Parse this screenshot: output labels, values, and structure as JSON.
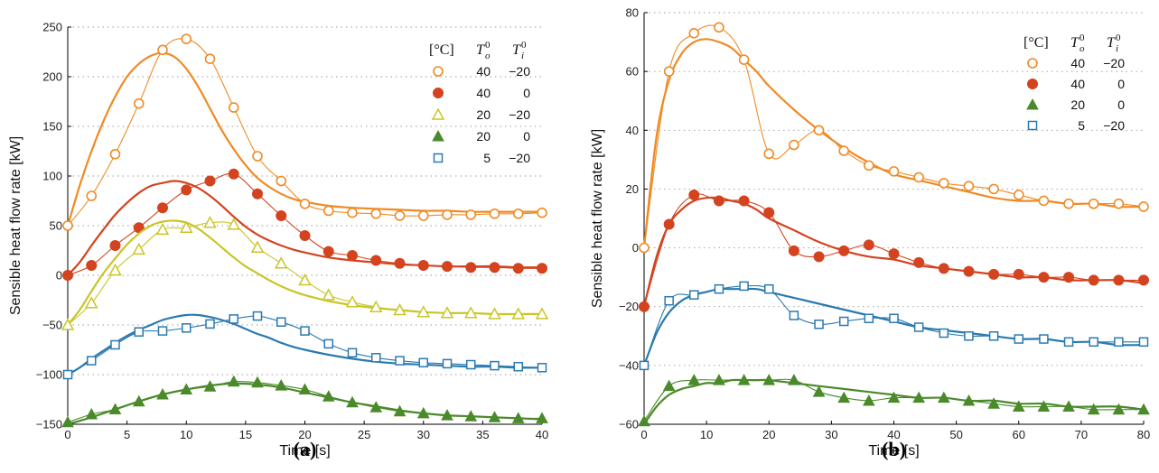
{
  "chart_data": [
    {
      "type": "line",
      "panel_label": "(a)",
      "xlabel": "Time [s]",
      "ylabel": "Sensible heat flow rate [kW]",
      "xlim": [
        0,
        40
      ],
      "ylim": [
        -150,
        250
      ],
      "xticks": [
        0,
        5,
        10,
        15,
        20,
        25,
        30,
        35,
        40
      ],
      "yticks": [
        -150,
        -100,
        -50,
        0,
        50,
        100,
        150,
        200,
        250
      ],
      "grid": "horizontal dotted",
      "legend_position": "top-right",
      "legend_header": {
        "unit": "[°C]",
        "col1_base": "T",
        "col1_sub": "o",
        "col1_sup": "0",
        "col2_base": "T",
        "col2_sub": "i",
        "col2_sup": "0"
      },
      "series": [
        {
          "To": "40",
          "Ti": "−20",
          "color": "#f08a24",
          "marker": "circle-open",
          "x": [
            0,
            2,
            4,
            6,
            8,
            10,
            12,
            14,
            16,
            18,
            20,
            22,
            24,
            26,
            28,
            30,
            32,
            34,
            36,
            38,
            40
          ],
          "values": [
            50,
            80,
            122,
            173,
            227,
            238,
            218,
            169,
            120,
            95,
            72,
            65,
            63,
            62,
            60,
            60,
            61,
            61,
            62,
            62,
            63
          ],
          "fit_x": [
            0,
            1,
            2,
            3,
            4,
            5,
            6,
            7,
            8,
            9,
            10,
            11,
            12,
            13,
            14,
            15,
            16,
            17,
            18,
            19,
            20,
            22,
            24,
            26,
            28,
            30,
            32,
            34,
            36,
            38,
            40
          ],
          "fit": [
            50,
            90,
            125,
            155,
            180,
            200,
            213,
            221,
            224,
            220,
            208,
            190,
            168,
            146,
            127,
            111,
            98,
            89,
            82,
            77,
            74,
            70,
            68,
            67,
            66,
            65,
            65,
            64,
            64,
            64,
            64
          ]
        },
        {
          "To": "40",
          "Ti": "0",
          "color": "#d4431f",
          "marker": "circle-filled",
          "x": [
            0,
            2,
            4,
            6,
            8,
            10,
            12,
            14,
            16,
            18,
            20,
            22,
            24,
            26,
            28,
            30,
            32,
            34,
            36,
            38,
            40
          ],
          "values": [
            0,
            10,
            30,
            48,
            68,
            86,
            95,
            102,
            82,
            60,
            40,
            24,
            20,
            15,
            12,
            10,
            9,
            8,
            8,
            7,
            7
          ],
          "fit_x": [
            0,
            1,
            2,
            3,
            4,
            5,
            6,
            7,
            8,
            9,
            10,
            11,
            12,
            13,
            14,
            15,
            16,
            17,
            18,
            19,
            20,
            22,
            24,
            26,
            28,
            30,
            32,
            34,
            36,
            38,
            40
          ],
          "fit": [
            0,
            13,
            30,
            46,
            61,
            73,
            83,
            90,
            93,
            95,
            93,
            88,
            80,
            70,
            59,
            49,
            41,
            35,
            30,
            26,
            23,
            18,
            15,
            13,
            11,
            10,
            9,
            9,
            9,
            8,
            8
          ]
        },
        {
          "To": "20",
          "Ti": "−20",
          "color": "#c9c527",
          "marker": "triangle-open",
          "x": [
            0,
            2,
            4,
            6,
            8,
            10,
            12,
            14,
            16,
            18,
            20,
            22,
            24,
            26,
            28,
            30,
            32,
            34,
            36,
            38,
            40
          ],
          "values": [
            -50,
            -28,
            5,
            26,
            46,
            48,
            53,
            51,
            28,
            12,
            -5,
            -20,
            -27,
            -32,
            -35,
            -37,
            -38,
            -38,
            -39,
            -39,
            -39
          ],
          "fit_x": [
            0,
            1,
            2,
            3,
            4,
            5,
            6,
            7,
            8,
            9,
            10,
            11,
            12,
            13,
            14,
            15,
            16,
            17,
            18,
            19,
            20,
            22,
            24,
            26,
            28,
            30,
            32,
            34,
            36,
            38,
            40
          ],
          "fit": [
            -50,
            -35,
            -16,
            2,
            17,
            31,
            42,
            50,
            54,
            55,
            53,
            47,
            38,
            28,
            18,
            9,
            2,
            -5,
            -11,
            -16,
            -20,
            -26,
            -30,
            -33,
            -35,
            -37,
            -38,
            -38,
            -39,
            -39,
            -39
          ]
        },
        {
          "To": "20",
          "Ti": "0",
          "color": "#4a8a2a",
          "marker": "triangle-filled",
          "x": [
            0,
            2,
            4,
            6,
            8,
            10,
            12,
            14,
            16,
            18,
            20,
            22,
            24,
            26,
            28,
            30,
            32,
            34,
            36,
            38,
            40
          ],
          "values": [
            -148,
            -140,
            -135,
            -127,
            -120,
            -115,
            -112,
            -107,
            -108,
            -111,
            -115,
            -122,
            -128,
            -133,
            -137,
            -139,
            -141,
            -142,
            -143,
            -144,
            -144
          ],
          "fit_x": [
            0,
            2,
            4,
            6,
            8,
            10,
            12,
            14,
            16,
            18,
            20,
            22,
            24,
            26,
            28,
            30,
            32,
            34,
            36,
            38,
            40
          ],
          "fit": [
            -150,
            -143,
            -135,
            -127,
            -120,
            -115,
            -111,
            -109,
            -110,
            -113,
            -118,
            -123,
            -128,
            -132,
            -136,
            -139,
            -141,
            -142,
            -143,
            -144,
            -145
          ]
        },
        {
          "To": "5",
          "Ti": "−20",
          "color": "#2a7ab0",
          "marker": "square-open",
          "x": [
            0,
            2,
            4,
            6,
            8,
            10,
            12,
            14,
            16,
            18,
            20,
            22,
            24,
            26,
            28,
            30,
            32,
            34,
            36,
            38,
            40
          ],
          "values": [
            -100,
            -86,
            -70,
            -57,
            -56,
            -53,
            -49,
            -44,
            -41,
            -47,
            -56,
            -69,
            -78,
            -83,
            -86,
            -88,
            -89,
            -90,
            -91,
            -92,
            -93
          ],
          "fit_x": [
            0,
            1,
            2,
            3,
            4,
            5,
            6,
            7,
            8,
            9,
            10,
            11,
            12,
            13,
            14,
            15,
            16,
            17,
            18,
            19,
            20,
            22,
            24,
            26,
            28,
            30,
            32,
            34,
            36,
            38,
            40
          ],
          "fit": [
            -100,
            -93,
            -84,
            -76,
            -68,
            -61,
            -55,
            -50,
            -45,
            -42,
            -40,
            -40,
            -42,
            -45,
            -49,
            -54,
            -59,
            -63,
            -68,
            -72,
            -75,
            -80,
            -84,
            -87,
            -89,
            -90,
            -91,
            -92,
            -92,
            -93,
            -93
          ]
        }
      ]
    },
    {
      "type": "line",
      "panel_label": "(b)",
      "xlabel": "Time [s]",
      "ylabel": "Sensible heat flow rate [kW]",
      "xlim": [
        0,
        80
      ],
      "ylim": [
        -60,
        80
      ],
      "xticks": [
        0,
        10,
        20,
        30,
        40,
        50,
        60,
        70,
        80
      ],
      "yticks": [
        -60,
        -40,
        -20,
        0,
        20,
        40,
        60,
        80
      ],
      "grid": "horizontal dotted",
      "legend_position": "top-right",
      "legend_header": {
        "unit": "[°C]",
        "col1_base": "T",
        "col1_sub": "o",
        "col1_sup": "0",
        "col2_base": "T",
        "col2_sub": "i",
        "col2_sup": "0"
      },
      "series": [
        {
          "To": "40",
          "Ti": "−20",
          "color": "#f08a24",
          "marker": "circle-open",
          "x": [
            0,
            4,
            8,
            12,
            16,
            20,
            24,
            28,
            32,
            36,
            40,
            44,
            48,
            52,
            56,
            60,
            64,
            68,
            72,
            76,
            80
          ],
          "values": [
            0,
            60,
            73,
            75,
            64,
            32,
            35,
            40,
            33,
            28,
            26,
            24,
            22,
            21,
            20,
            18,
            16,
            15,
            15,
            15,
            14
          ],
          "fit_x": [
            0,
            2,
            4,
            6,
            8,
            10,
            12,
            14,
            16,
            18,
            20,
            24,
            28,
            32,
            36,
            40,
            44,
            48,
            52,
            56,
            60,
            64,
            68,
            72,
            76,
            80
          ],
          "fit": [
            0,
            38,
            57,
            66,
            70,
            71,
            70,
            68,
            64,
            60,
            55,
            47,
            40,
            34,
            29,
            25,
            23,
            21,
            19,
            17,
            16,
            16,
            15,
            15,
            14,
            14
          ]
        },
        {
          "To": "40",
          "Ti": "0",
          "color": "#d4431f",
          "marker": "circle-filled",
          "x": [
            0,
            4,
            8,
            12,
            16,
            20,
            24,
            28,
            32,
            36,
            40,
            44,
            48,
            52,
            56,
            60,
            64,
            68,
            72,
            76,
            80
          ],
          "values": [
            -20,
            8,
            18,
            16,
            16,
            12,
            -1,
            -3,
            -1,
            1,
            -2,
            -5,
            -7,
            -8,
            -9,
            -9,
            -10,
            -10,
            -11,
            -11,
            -11
          ],
          "fit_x": [
            0,
            2,
            4,
            6,
            8,
            10,
            12,
            14,
            16,
            18,
            20,
            24,
            28,
            32,
            36,
            40,
            44,
            48,
            52,
            56,
            60,
            64,
            68,
            72,
            76,
            80
          ],
          "fit": [
            -20,
            -3,
            8,
            13,
            16,
            17,
            17,
            16,
            15,
            13,
            10,
            6,
            2,
            -1,
            -3,
            -4,
            -6,
            -7,
            -8,
            -9,
            -10,
            -10,
            -11,
            -11,
            -11,
            -12
          ]
        },
        {
          "To": "20",
          "Ti": "0",
          "color": "#4a8a2a",
          "marker": "triangle-filled",
          "x": [
            0,
            4,
            8,
            12,
            16,
            20,
            24,
            28,
            32,
            36,
            40,
            44,
            48,
            52,
            56,
            60,
            64,
            68,
            72,
            76,
            80
          ],
          "values": [
            -59,
            -47,
            -45,
            -45,
            -45,
            -45,
            -45,
            -49,
            -51,
            -52,
            -51,
            -51,
            -51,
            -52,
            -53,
            -54,
            -54,
            -54,
            -55,
            -55,
            -55
          ],
          "fit_x": [
            0,
            2,
            4,
            6,
            8,
            10,
            12,
            14,
            16,
            18,
            20,
            24,
            28,
            32,
            36,
            40,
            44,
            48,
            52,
            56,
            60,
            64,
            68,
            72,
            76,
            80
          ],
          "fit": [
            -60,
            -54,
            -50,
            -48,
            -47,
            -46,
            -46,
            -45,
            -45,
            -45,
            -45,
            -46,
            -47,
            -48,
            -49,
            -50,
            -51,
            -51,
            -52,
            -52,
            -53,
            -53,
            -54,
            -54,
            -54,
            -55
          ]
        },
        {
          "To": "5",
          "Ti": "−20",
          "color": "#2a7ab0",
          "marker": "square-open",
          "x": [
            0,
            4,
            8,
            12,
            16,
            20,
            24,
            28,
            32,
            36,
            40,
            44,
            48,
            52,
            56,
            60,
            64,
            68,
            72,
            76,
            80
          ],
          "values": [
            -40,
            -18,
            -16,
            -14,
            -13,
            -14,
            -23,
            -26,
            -25,
            -24,
            -24,
            -27,
            -29,
            -30,
            -30,
            -31,
            -31,
            -32,
            -32,
            -32,
            -32
          ],
          "fit_x": [
            0,
            2,
            4,
            6,
            8,
            10,
            12,
            14,
            16,
            18,
            20,
            24,
            28,
            32,
            36,
            40,
            44,
            48,
            52,
            56,
            60,
            64,
            68,
            72,
            76,
            80
          ],
          "fit": [
            -40,
            -29,
            -22,
            -18,
            -16,
            -15,
            -14,
            -14,
            -14,
            -14,
            -15,
            -17,
            -19,
            -21,
            -23,
            -25,
            -27,
            -28,
            -29,
            -30,
            -31,
            -31,
            -32,
            -32,
            -33,
            -33
          ]
        }
      ]
    }
  ]
}
